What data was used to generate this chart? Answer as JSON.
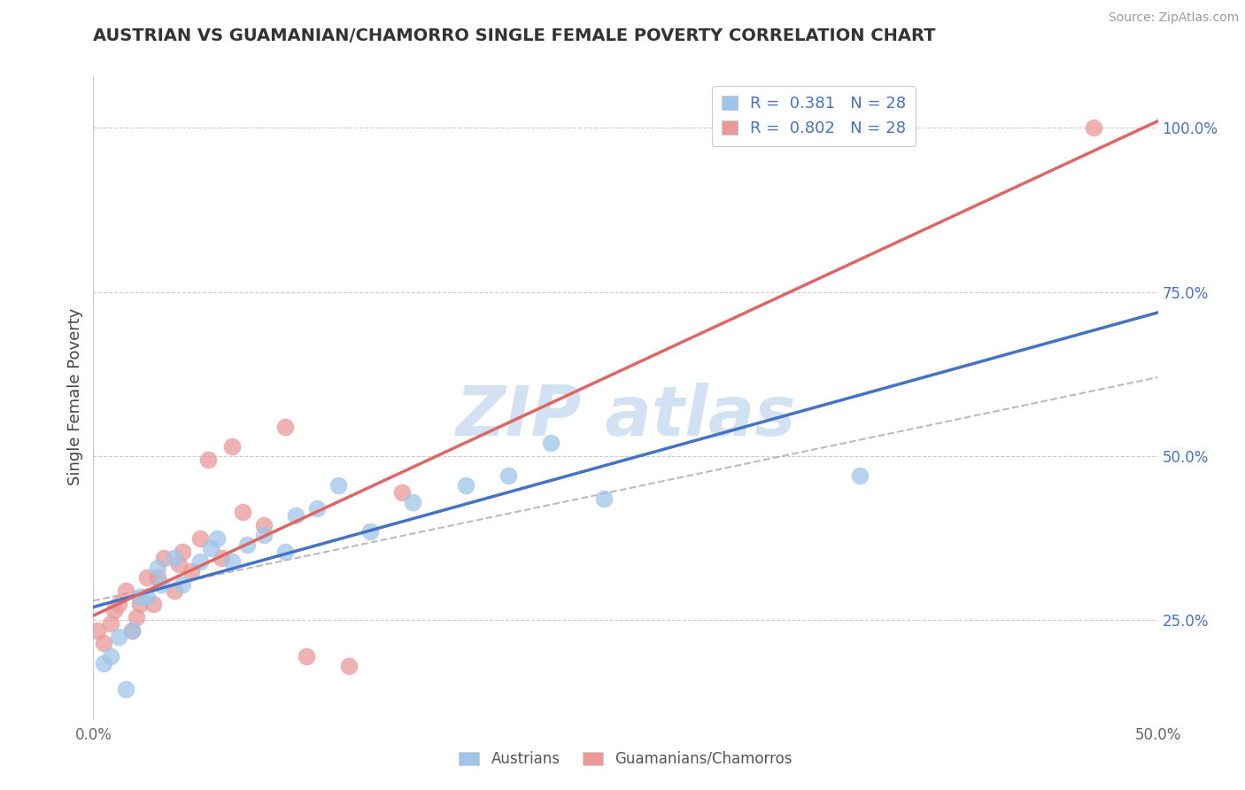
{
  "title": "AUSTRIAN VS GUAMANIAN/CHAMORRO SINGLE FEMALE POVERTY CORRELATION CHART",
  "source": "Source: ZipAtlas.com",
  "ylabel": "Single Female Poverty",
  "xlim": [
    0.0,
    0.5
  ],
  "ylim": [
    0.1,
    1.08
  ],
  "xticks": [
    0.0,
    0.1,
    0.2,
    0.3,
    0.4,
    0.5
  ],
  "xtick_labels": [
    "0.0%",
    "",
    "",
    "",
    "",
    "50.0%"
  ],
  "ytick_vals_right": [
    0.25,
    0.5,
    0.75,
    1.0
  ],
  "ytick_labels_right": [
    "25.0%",
    "50.0%",
    "75.0%",
    "100.0%"
  ],
  "legend1_label": "R =  0.381   N = 28",
  "legend2_label": "R =  0.802   N = 28",
  "legend_bottom": [
    "Austrians",
    "Guamanians/Chamorros"
  ],
  "blue_color": "#9fc5e8",
  "pink_color": "#ea9999",
  "line_blue": "#4472c4",
  "line_pink": "#e06666",
  "background_color": "#ffffff",
  "grid_color": "#cccccc",
  "austrian_x": [
    0.005,
    0.008,
    0.012,
    0.018,
    0.022,
    0.025,
    0.03,
    0.032,
    0.038,
    0.042,
    0.05,
    0.055,
    0.058,
    0.065,
    0.072,
    0.08,
    0.09,
    0.095,
    0.105,
    0.115,
    0.13,
    0.15,
    0.175,
    0.195,
    0.215,
    0.24,
    0.36,
    0.015
  ],
  "austrian_y": [
    0.185,
    0.195,
    0.225,
    0.235,
    0.285,
    0.285,
    0.33,
    0.305,
    0.345,
    0.305,
    0.34,
    0.36,
    0.375,
    0.34,
    0.365,
    0.38,
    0.355,
    0.41,
    0.42,
    0.455,
    0.385,
    0.43,
    0.455,
    0.47,
    0.52,
    0.435,
    0.47,
    0.145
  ],
  "guam_x": [
    0.002,
    0.005,
    0.008,
    0.01,
    0.012,
    0.015,
    0.018,
    0.02,
    0.022,
    0.025,
    0.028,
    0.03,
    0.033,
    0.038,
    0.04,
    0.042,
    0.046,
    0.05,
    0.054,
    0.06,
    0.065,
    0.07,
    0.08,
    0.09,
    0.1,
    0.12,
    0.145,
    0.47
  ],
  "guam_y": [
    0.235,
    0.215,
    0.245,
    0.265,
    0.275,
    0.295,
    0.235,
    0.255,
    0.275,
    0.315,
    0.275,
    0.315,
    0.345,
    0.295,
    0.335,
    0.355,
    0.325,
    0.375,
    0.495,
    0.345,
    0.515,
    0.415,
    0.395,
    0.545,
    0.195,
    0.18,
    0.445,
    1.0
  ],
  "ref_line_x": [
    0.0,
    0.5
  ],
  "ref_line_y": [
    0.28,
    0.62
  ]
}
